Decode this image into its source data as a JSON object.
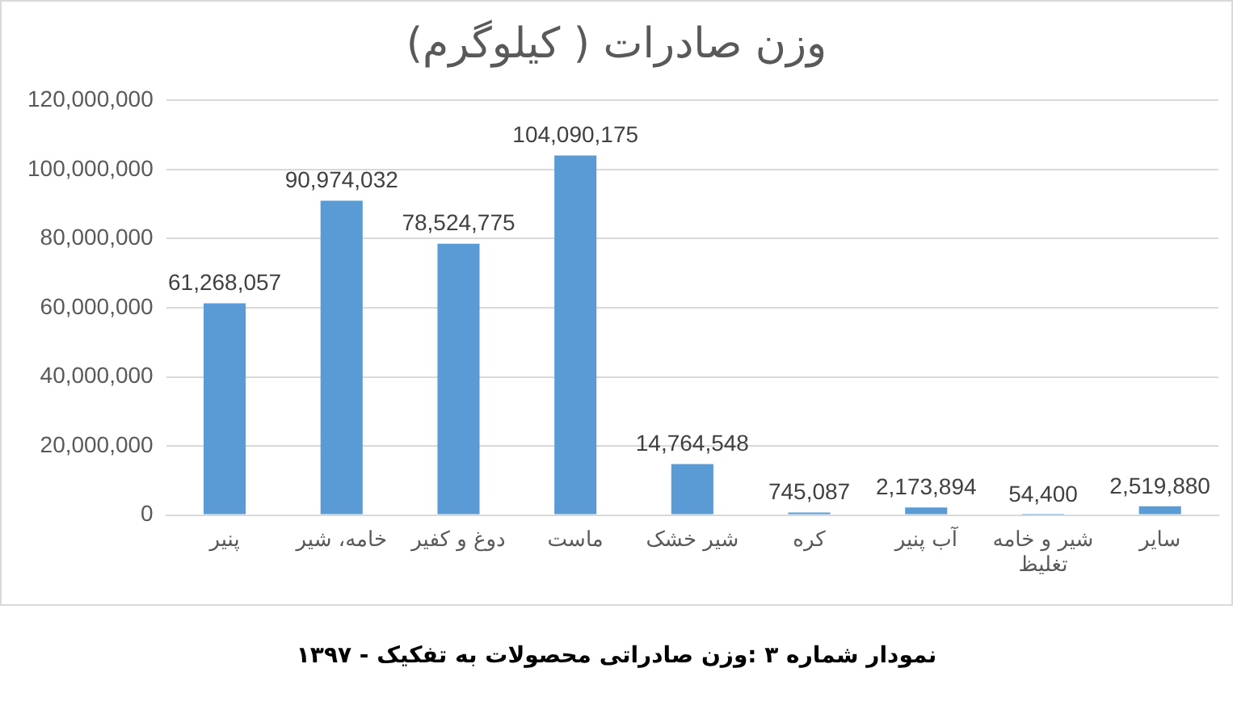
{
  "chart_data": {
    "type": "bar",
    "title": "وزن صادرات ( کیلوگرم)",
    "categories": [
      "پنیر",
      "خامه، شیر",
      "دوغ و کفیر",
      "ماست",
      "شیر خشک",
      "کره",
      "آب پنیر",
      "شیر و خامه تغلیظ",
      "سایر"
    ],
    "values": [
      61268057,
      90974032,
      78524775,
      104090175,
      14764548,
      745087,
      2173894,
      54400,
      2519880
    ],
    "color": "#5b9bd5",
    "ylim": [
      0,
      120000000
    ],
    "yticks": [
      {
        "value": 0,
        "label": "0"
      },
      {
        "value": 20000000,
        "label": "20,000,000"
      },
      {
        "value": 40000000,
        "label": "40,000,000"
      },
      {
        "value": 60000000,
        "label": "60,000,000"
      },
      {
        "value": 80000000,
        "label": "80,000,000"
      },
      {
        "value": 100000000,
        "label": "100,000,000"
      },
      {
        "value": 120000000,
        "label": "120,000,000"
      }
    ],
    "value_labels": [
      "61,268,057",
      "90,974,032",
      "78,524,775",
      "104,090,175",
      "14,764,548",
      "745,087",
      "2,173,894",
      "54,400",
      "2,519,880"
    ],
    "grid": "y",
    "annotations": [
      "نمودار شماره ۳ :وزن صادراتی محصولات به تفکیک - ۱۳۹۷"
    ]
  }
}
